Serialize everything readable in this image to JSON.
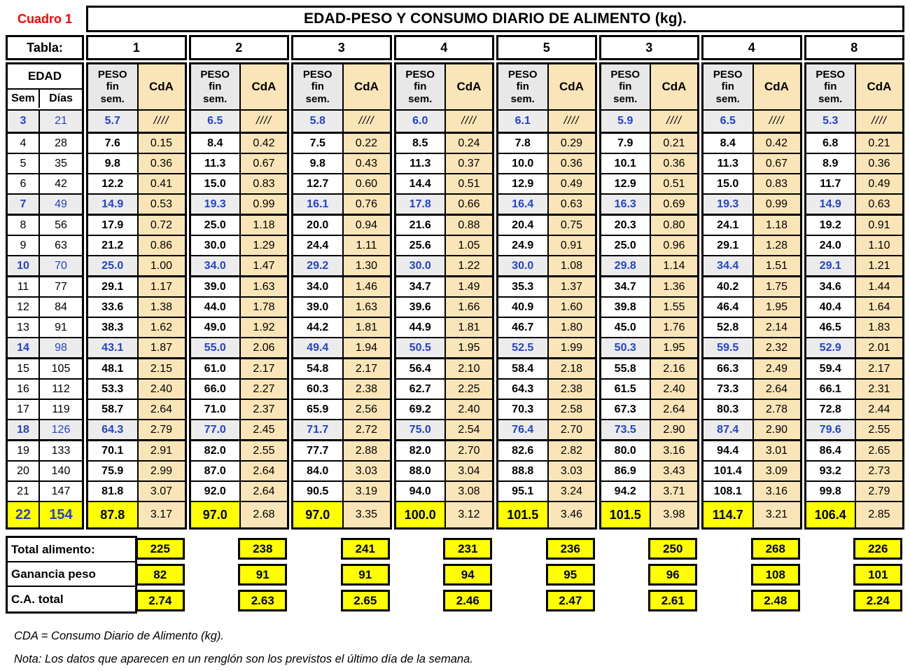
{
  "cuadro_label": "Cuadro 1",
  "title": "EDAD-PESO Y CONSUMO DIARIO DE ALIMENTO (kg).",
  "tabla_label": "Tabla:",
  "edad_label": "EDAD",
  "sem_label": "Sem",
  "dias_label": "Días",
  "peso_header_lines": [
    "PESO",
    "fin",
    "sem."
  ],
  "cda_header": "CdA",
  "tables": [
    "1",
    "2",
    "3",
    "4",
    "5",
    "3",
    "4",
    "8"
  ],
  "rows": [
    {
      "sem": "3",
      "dias": "21",
      "hl": "blue",
      "cells": [
        [
          "5.7",
          "////"
        ],
        [
          "6.5",
          "////"
        ],
        [
          "5.8",
          "////"
        ],
        [
          "6.0",
          "////"
        ],
        [
          "6.1",
          "////"
        ],
        [
          "5.9",
          "////"
        ],
        [
          "6.5",
          "////"
        ],
        [
          "5.3",
          "////"
        ]
      ]
    },
    {
      "sem": "4",
      "dias": "28",
      "cells": [
        [
          "7.6",
          "0.15"
        ],
        [
          "8.4",
          "0.42"
        ],
        [
          "7.5",
          "0.22"
        ],
        [
          "8.5",
          "0.24"
        ],
        [
          "7.8",
          "0.29"
        ],
        [
          "7.9",
          "0.21"
        ],
        [
          "8.4",
          "0.42"
        ],
        [
          "6.8",
          "0.21"
        ]
      ]
    },
    {
      "sem": "5",
      "dias": "35",
      "cells": [
        [
          "9.8",
          "0.36"
        ],
        [
          "11.3",
          "0.67"
        ],
        [
          "9.8",
          "0.43"
        ],
        [
          "11.3",
          "0.37"
        ],
        [
          "10.0",
          "0.36"
        ],
        [
          "10.1",
          "0.36"
        ],
        [
          "11.3",
          "0.67"
        ],
        [
          "8.9",
          "0.36"
        ]
      ]
    },
    {
      "sem": "6",
      "dias": "42",
      "cells": [
        [
          "12.2",
          "0.41"
        ],
        [
          "15.0",
          "0.83"
        ],
        [
          "12.7",
          "0.60"
        ],
        [
          "14.4",
          "0.51"
        ],
        [
          "12.9",
          "0.49"
        ],
        [
          "12.9",
          "0.51"
        ],
        [
          "15.0",
          "0.83"
        ],
        [
          "11.7",
          "0.49"
        ]
      ]
    },
    {
      "sem": "7",
      "dias": "49",
      "hl": "blue",
      "cells": [
        [
          "14.9",
          "0.53"
        ],
        [
          "19.3",
          "0.99"
        ],
        [
          "16.1",
          "0.76"
        ],
        [
          "17.8",
          "0.66"
        ],
        [
          "16.4",
          "0.63"
        ],
        [
          "16.3",
          "0.69"
        ],
        [
          "19.3",
          "0.99"
        ],
        [
          "14.9",
          "0.63"
        ]
      ]
    },
    {
      "sem": "8",
      "dias": "56",
      "cells": [
        [
          "17.9",
          "0.72"
        ],
        [
          "25.0",
          "1.18"
        ],
        [
          "20.0",
          "0.94"
        ],
        [
          "21.6",
          "0.88"
        ],
        [
          "20.4",
          "0.75"
        ],
        [
          "20.3",
          "0.80"
        ],
        [
          "24.1",
          "1.18"
        ],
        [
          "19.2",
          "0.91"
        ]
      ]
    },
    {
      "sem": "9",
      "dias": "63",
      "cells": [
        [
          "21.2",
          "0.86"
        ],
        [
          "30.0",
          "1.29"
        ],
        [
          "24.4",
          "1.11"
        ],
        [
          "25.6",
          "1.05"
        ],
        [
          "24.9",
          "0.91"
        ],
        [
          "25.0",
          "0.96"
        ],
        [
          "29.1",
          "1.28"
        ],
        [
          "24.0",
          "1.10"
        ]
      ]
    },
    {
      "sem": "10",
      "dias": "70",
      "hl": "blue",
      "cells": [
        [
          "25.0",
          "1.00"
        ],
        [
          "34.0",
          "1.47"
        ],
        [
          "29.2",
          "1.30"
        ],
        [
          "30.0",
          "1.22"
        ],
        [
          "30.0",
          "1.08"
        ],
        [
          "29.8",
          "1.14"
        ],
        [
          "34.4",
          "1.51"
        ],
        [
          "29.1",
          "1.21"
        ]
      ]
    },
    {
      "sem": "11",
      "dias": "77",
      "cells": [
        [
          "29.1",
          "1.17"
        ],
        [
          "39.0",
          "1.63"
        ],
        [
          "34.0",
          "1.46"
        ],
        [
          "34.7",
          "1.49"
        ],
        [
          "35.3",
          "1.37"
        ],
        [
          "34.7",
          "1.36"
        ],
        [
          "40.2",
          "1.75"
        ],
        [
          "34.6",
          "1.44"
        ]
      ]
    },
    {
      "sem": "12",
      "dias": "84",
      "cells": [
        [
          "33.6",
          "1.38"
        ],
        [
          "44.0",
          "1.78"
        ],
        [
          "39.0",
          "1.63"
        ],
        [
          "39.6",
          "1.66"
        ],
        [
          "40.9",
          "1.60"
        ],
        [
          "39.8",
          "1.55"
        ],
        [
          "46.4",
          "1.95"
        ],
        [
          "40.4",
          "1.64"
        ]
      ]
    },
    {
      "sem": "13",
      "dias": "91",
      "cells": [
        [
          "38.3",
          "1.62"
        ],
        [
          "49.0",
          "1.92"
        ],
        [
          "44.2",
          "1.81"
        ],
        [
          "44.9",
          "1.81"
        ],
        [
          "46.7",
          "1.80"
        ],
        [
          "45.0",
          "1.76"
        ],
        [
          "52.8",
          "2.14"
        ],
        [
          "46.5",
          "1.83"
        ]
      ]
    },
    {
      "sem": "14",
      "dias": "98",
      "hl": "blue",
      "cells": [
        [
          "43.1",
          "1.87"
        ],
        [
          "55.0",
          "2.06"
        ],
        [
          "49.4",
          "1.94"
        ],
        [
          "50.5",
          "1.95"
        ],
        [
          "52.5",
          "1.99"
        ],
        [
          "50.3",
          "1.95"
        ],
        [
          "59.5",
          "2.32"
        ],
        [
          "52.9",
          "2.01"
        ]
      ]
    },
    {
      "sem": "15",
      "dias": "105",
      "cells": [
        [
          "48.1",
          "2.15"
        ],
        [
          "61.0",
          "2.17"
        ],
        [
          "54.8",
          "2.17"
        ],
        [
          "56.4",
          "2.10"
        ],
        [
          "58.4",
          "2.18"
        ],
        [
          "55.8",
          "2.16"
        ],
        [
          "66.3",
          "2.49"
        ],
        [
          "59.4",
          "2.17"
        ]
      ]
    },
    {
      "sem": "16",
      "dias": "112",
      "cells": [
        [
          "53.3",
          "2.40"
        ],
        [
          "66.0",
          "2.27"
        ],
        [
          "60.3",
          "2.38"
        ],
        [
          "62.7",
          "2.25"
        ],
        [
          "64.3",
          "2.38"
        ],
        [
          "61.5",
          "2.40"
        ],
        [
          "73.3",
          "2.64"
        ],
        [
          "66.1",
          "2.31"
        ]
      ]
    },
    {
      "sem": "17",
      "dias": "119",
      "cells": [
        [
          "58.7",
          "2.64"
        ],
        [
          "71.0",
          "2.37"
        ],
        [
          "65.9",
          "2.56"
        ],
        [
          "69.2",
          "2.40"
        ],
        [
          "70.3",
          "2.58"
        ],
        [
          "67.3",
          "2.64"
        ],
        [
          "80.3",
          "2.78"
        ],
        [
          "72.8",
          "2.44"
        ]
      ]
    },
    {
      "sem": "18",
      "dias": "126",
      "hl": "blue",
      "cells": [
        [
          "64.3",
          "2.79"
        ],
        [
          "77.0",
          "2.45"
        ],
        [
          "71.7",
          "2.72"
        ],
        [
          "75.0",
          "2.54"
        ],
        [
          "76.4",
          "2.70"
        ],
        [
          "73.5",
          "2.90"
        ],
        [
          "87.4",
          "2.90"
        ],
        [
          "79.6",
          "2.55"
        ]
      ]
    },
    {
      "sem": "19",
      "dias": "133",
      "cells": [
        [
          "70.1",
          "2.91"
        ],
        [
          "82.0",
          "2.55"
        ],
        [
          "77.7",
          "2.88"
        ],
        [
          "82.0",
          "2.70"
        ],
        [
          "82.6",
          "2.82"
        ],
        [
          "80.0",
          "3.16"
        ],
        [
          "94.4",
          "3.01"
        ],
        [
          "86.4",
          "2.65"
        ]
      ]
    },
    {
      "sem": "20",
      "dias": "140",
      "cells": [
        [
          "75.9",
          "2.99"
        ],
        [
          "87.0",
          "2.64"
        ],
        [
          "84.0",
          "3.03"
        ],
        [
          "88.0",
          "3.04"
        ],
        [
          "88.8",
          "3.03"
        ],
        [
          "86.9",
          "3.43"
        ],
        [
          "101.4",
          "3.09"
        ],
        [
          "93.2",
          "2.73"
        ]
      ]
    },
    {
      "sem": "21",
      "dias": "147",
      "cells": [
        [
          "81.8",
          "3.07"
        ],
        [
          "92.0",
          "2.64"
        ],
        [
          "90.5",
          "3.19"
        ],
        [
          "94.0",
          "3.08"
        ],
        [
          "95.1",
          "3.24"
        ],
        [
          "94.2",
          "3.71"
        ],
        [
          "108.1",
          "3.16"
        ],
        [
          "99.8",
          "2.79"
        ]
      ]
    },
    {
      "sem": "22",
      "dias": "154",
      "hl": "yellow",
      "cells": [
        [
          "87.8",
          "3.17"
        ],
        [
          "97.0",
          "2.68"
        ],
        [
          "97.0",
          "3.35"
        ],
        [
          "100.0",
          "3.12"
        ],
        [
          "101.5",
          "3.46"
        ],
        [
          "101.5",
          "3.98"
        ],
        [
          "114.7",
          "3.21"
        ],
        [
          "106.4",
          "2.85"
        ]
      ]
    }
  ],
  "summary": {
    "rows": [
      {
        "label": "Total alimento:",
        "values": [
          "225",
          "238",
          "241",
          "231",
          "236",
          "250",
          "268",
          "226"
        ]
      },
      {
        "label": "Ganancia peso",
        "values": [
          "82",
          "91",
          "91",
          "94",
          "95",
          "96",
          "108",
          "101"
        ]
      },
      {
        "label": "C.A. total",
        "values": [
          "2.74",
          "2.63",
          "2.65",
          "2.46",
          "2.47",
          "2.61",
          "2.48",
          "2.24"
        ]
      }
    ]
  },
  "footnotes": [
    "CDA = Consumo Diario de Alimento (kg).",
    "Nota: Los datos que aparecen en un renglón son los previstos el último día de la semana."
  ],
  "colors": {
    "red": "#FF0000",
    "blue": "#2244CC",
    "tan": "#FAE5B8",
    "grey_header": "#E8E8E8",
    "grey_row": "#ECECEC",
    "yellow": "#FFFF00"
  }
}
